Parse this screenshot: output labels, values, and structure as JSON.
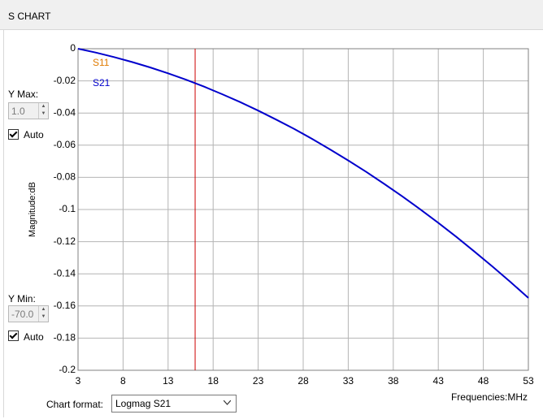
{
  "panel": {
    "window_title": "S CHART",
    "y_max": {
      "label": "Y Max:",
      "value": "1.0",
      "auto": "Auto"
    },
    "y_min": {
      "label": "Y Min:",
      "value": "-70.0",
      "auto": "Auto"
    },
    "chart_format": {
      "label": "Chart format:",
      "value": "Logmag S21"
    }
  },
  "chart_data": {
    "type": "line",
    "x_label": "Frequencies:MHz",
    "y_label": "Magnitude:dB",
    "x": [
      3,
      5,
      7,
      9,
      11,
      13,
      15,
      17,
      19,
      21,
      23,
      25,
      27,
      29,
      31,
      33,
      35,
      37,
      39,
      41,
      43,
      45,
      47,
      49,
      51,
      53
    ],
    "series": [
      {
        "name": "S11",
        "color": "#e07b00",
        "values": [
          null,
          null,
          null,
          null,
          null,
          null,
          null,
          null,
          null,
          null,
          null,
          null,
          null,
          null,
          null,
          null,
          null,
          null,
          null,
          null,
          null,
          null,
          null,
          null,
          null,
          null
        ]
      },
      {
        "name": "S21",
        "color": "#0000cc",
        "values": [
          0,
          -0.0024,
          -0.0052,
          -0.0083,
          -0.0116,
          -0.0153,
          -0.0193,
          -0.0236,
          -0.0283,
          -0.0332,
          -0.0385,
          -0.0441,
          -0.0499,
          -0.0561,
          -0.0627,
          -0.0695,
          -0.0766,
          -0.0841,
          -0.0918,
          -0.0999,
          -0.1083,
          -0.117,
          -0.1261,
          -0.1354,
          -0.145,
          -0.155
        ]
      }
    ],
    "xlim": [
      3,
      53
    ],
    "xticks": [
      3,
      8,
      13,
      18,
      23,
      28,
      33,
      38,
      43,
      48,
      53
    ],
    "ylim": [
      -0.2,
      0
    ],
    "yticks": [
      0,
      -0.02,
      -0.04,
      -0.06,
      -0.08,
      -0.1,
      -0.12,
      -0.14,
      -0.16,
      -0.18,
      -0.2
    ],
    "grid": true,
    "marker_x": 16,
    "marker_color": "#cc0000"
  }
}
